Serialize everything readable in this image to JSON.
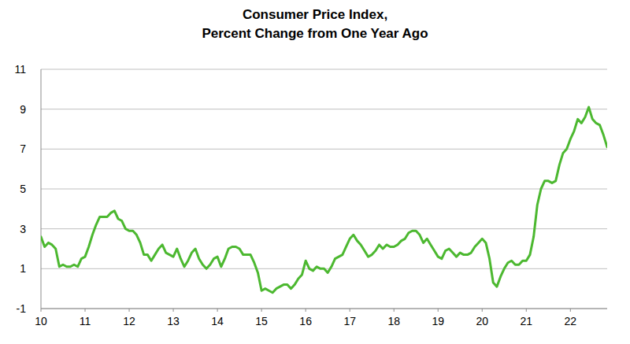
{
  "chart_data": {
    "type": "line",
    "title": "Consumer Price Index,",
    "subtitle": "Percent Change from One Year Ago",
    "categories": [
      "10",
      null,
      null,
      null,
      null,
      null,
      null,
      null,
      null,
      null,
      null,
      null,
      "11",
      null,
      null,
      null,
      null,
      null,
      null,
      null,
      null,
      null,
      null,
      null,
      "12",
      null,
      null,
      null,
      null,
      null,
      null,
      null,
      null,
      null,
      null,
      null,
      "13",
      null,
      null,
      null,
      null,
      null,
      null,
      null,
      null,
      null,
      null,
      null,
      "14",
      null,
      null,
      null,
      null,
      null,
      null,
      null,
      null,
      null,
      null,
      null,
      "15",
      null,
      null,
      null,
      null,
      null,
      null,
      null,
      null,
      null,
      null,
      null,
      "16",
      null,
      null,
      null,
      null,
      null,
      null,
      null,
      null,
      null,
      null,
      null,
      "17",
      null,
      null,
      null,
      null,
      null,
      null,
      null,
      null,
      null,
      null,
      null,
      "18",
      null,
      null,
      null,
      null,
      null,
      null,
      null,
      null,
      null,
      null,
      null,
      "19",
      null,
      null,
      null,
      null,
      null,
      null,
      null,
      null,
      null,
      null,
      null,
      "20",
      null,
      null,
      null,
      null,
      null,
      null,
      null,
      null,
      null,
      null,
      null,
      "21",
      null,
      null,
      null,
      null,
      null,
      null,
      null,
      null,
      null,
      null,
      null,
      "22",
      null,
      null,
      null,
      null,
      null,
      null,
      null,
      null,
      null,
      null
    ],
    "values": [
      2.6,
      2.1,
      2.3,
      2.2,
      2.0,
      1.1,
      1.2,
      1.1,
      1.1,
      1.2,
      1.1,
      1.5,
      1.6,
      2.1,
      2.7,
      3.2,
      3.6,
      3.6,
      3.6,
      3.8,
      3.9,
      3.5,
      3.4,
      3.0,
      2.9,
      2.9,
      2.7,
      2.3,
      1.7,
      1.7,
      1.4,
      1.7,
      2.0,
      2.2,
      1.8,
      1.7,
      1.6,
      2.0,
      1.5,
      1.1,
      1.4,
      1.8,
      2.0,
      1.5,
      1.2,
      1.0,
      1.2,
      1.5,
      1.6,
      1.1,
      1.5,
      2.0,
      2.1,
      2.1,
      2.0,
      1.7,
      1.7,
      1.7,
      1.3,
      0.8,
      -0.1,
      0.0,
      -0.1,
      -0.2,
      0.0,
      0.1,
      0.2,
      0.2,
      0.0,
      0.2,
      0.5,
      0.7,
      1.4,
      1.0,
      0.9,
      1.1,
      1.0,
      1.0,
      0.8,
      1.1,
      1.5,
      1.6,
      1.7,
      2.1,
      2.5,
      2.7,
      2.4,
      2.2,
      1.9,
      1.6,
      1.7,
      1.9,
      2.2,
      2.0,
      2.2,
      2.1,
      2.1,
      2.2,
      2.4,
      2.5,
      2.8,
      2.9,
      2.9,
      2.7,
      2.3,
      2.5,
      2.2,
      1.9,
      1.6,
      1.5,
      1.9,
      2.0,
      1.8,
      1.6,
      1.8,
      1.7,
      1.7,
      1.8,
      2.1,
      2.3,
      2.5,
      2.3,
      1.5,
      0.3,
      0.1,
      0.6,
      1.0,
      1.3,
      1.4,
      1.2,
      1.2,
      1.4,
      1.4,
      1.7,
      2.6,
      4.2,
      5.0,
      5.4,
      5.4,
      5.3,
      5.4,
      6.2,
      6.8,
      7.0,
      7.5,
      7.9,
      8.5,
      8.3,
      8.6,
      9.1,
      8.5,
      8.3,
      8.2,
      7.7,
      7.1
    ],
    "color": "#4cb830",
    "ylim": [
      -1,
      11
    ],
    "yticks": [
      -1,
      1,
      3,
      5,
      7,
      9,
      11
    ],
    "grid": true
  }
}
